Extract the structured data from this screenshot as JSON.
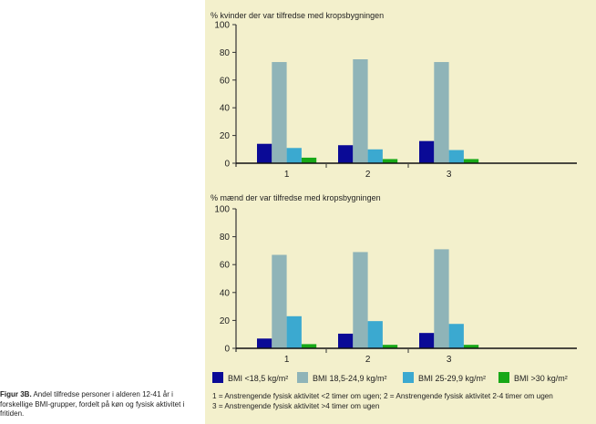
{
  "caption": {
    "label": "Figur 3B.",
    "text": "Andel tilfredse personer i alderen 12-41 år i forskellige BMI-grupper, fordelt på køn og fysisk aktivitet i fritiden."
  },
  "legend": {
    "notes": [
      "1 = Anstrengende fysisk aktivitet <2 timer om ugen;  2 = Anstrengende fysisk aktivitet 2-4 timer om ugen",
      "3 = Anstrengende fysisk aktivitet >4 timer om ugen"
    ]
  },
  "chart_data": [
    {
      "type": "bar",
      "title": "% kvinder der var tilfredse med kropsbygningen",
      "xlabel": "",
      "ylabel": "",
      "ylim": [
        0,
        100
      ],
      "yticks": [
        0,
        20,
        40,
        60,
        80,
        100
      ],
      "categories": [
        "1",
        "2",
        "3"
      ],
      "grid": false,
      "series": [
        {
          "name": "BMI <18,5 kg/m²",
          "color": "#0a0a96",
          "values": [
            14,
            13,
            16
          ]
        },
        {
          "name": "BMI 18,5-24,9 kg/m²",
          "color": "#8fb4b8",
          "values": [
            73,
            75,
            73
          ]
        },
        {
          "name": "BMI 25-29,9 kg/m²",
          "color": "#3ba9d0",
          "values": [
            11,
            10,
            9.5
          ]
        },
        {
          "name": "BMI >30 kg/m²",
          "color": "#17a817",
          "values": [
            4,
            3,
            3
          ]
        }
      ]
    },
    {
      "type": "bar",
      "title": "% mænd der var tilfredse med kropsbygningen",
      "xlabel": "",
      "ylabel": "",
      "ylim": [
        0,
        100
      ],
      "yticks": [
        0,
        20,
        40,
        60,
        80,
        100
      ],
      "categories": [
        "1",
        "2",
        "3"
      ],
      "grid": false,
      "series": [
        {
          "name": "BMI <18,5 kg/m²",
          "color": "#0a0a96",
          "values": [
            7,
            10.5,
            11
          ]
        },
        {
          "name": "BMI 18,5-24,9 kg/m²",
          "color": "#8fb4b8",
          "values": [
            67,
            69,
            71
          ]
        },
        {
          "name": "BMI 25-29,9 kg/m²",
          "color": "#3ba9d0",
          "values": [
            23,
            19.5,
            17.5
          ]
        },
        {
          "name": "BMI >30 kg/m²",
          "color": "#17a817",
          "values": [
            3,
            2.5,
            2.5
          ]
        }
      ]
    }
  ],
  "legend_entries": [
    {
      "label": "BMI <18,5 kg/m²",
      "color": "#0a0a96"
    },
    {
      "label": "BMI 18,5-24,9 kg/m²",
      "color": "#8fb4b8"
    },
    {
      "label": "BMI 25-29,9 kg/m²",
      "color": "#3ba9d0"
    },
    {
      "label": "BMI >30 kg/m²",
      "color": "#17a817"
    }
  ]
}
